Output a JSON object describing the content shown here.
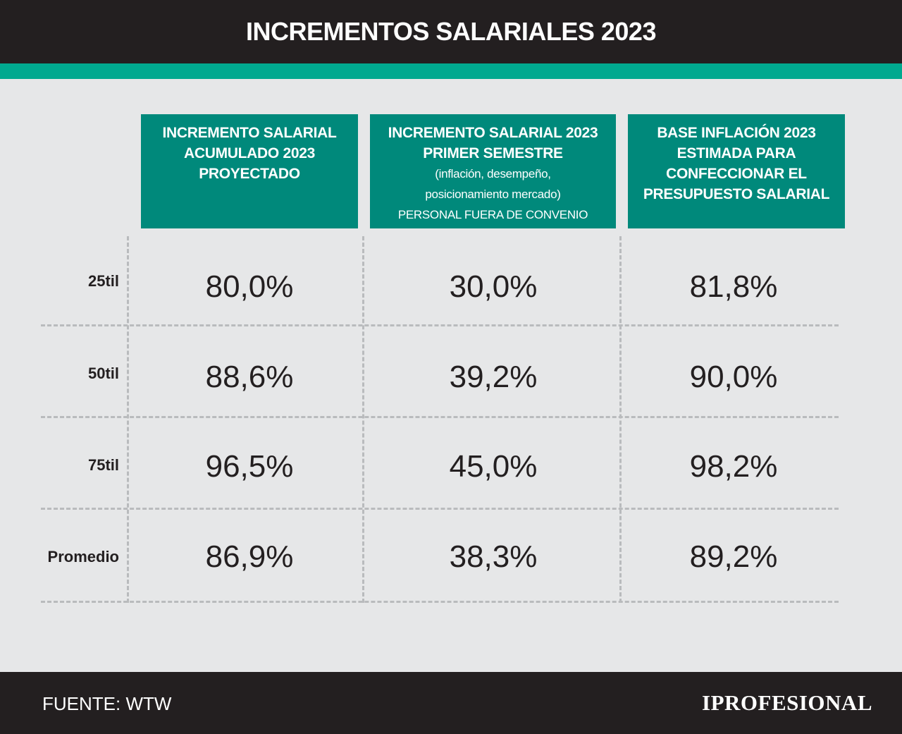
{
  "header": {
    "title": "INCREMENTOS SALARIALES 2023"
  },
  "colors": {
    "header_bg": "#231f20",
    "accent_stripe": "#00a98f",
    "column_header_bg": "#00897b",
    "background": "#e6e7e8"
  },
  "chart_data": {
    "type": "table",
    "title": "INCREMENTOS SALARIALES 2023",
    "columns": [
      {
        "lines": [
          "INCREMENTO SALARIAL",
          "ACUMULADO 2023",
          "PROYECTADO"
        ],
        "sub_lines": []
      },
      {
        "lines": [
          "INCREMENTO SALARIAL 2023",
          "PRIMER SEMESTRE"
        ],
        "sub_lines": [
          "(inflación, desempeño,",
          "posicionamiento mercado)",
          "PERSONAL FUERA DE CONVENIO"
        ]
      },
      {
        "lines": [
          "BASE INFLACIÓN 2023",
          "ESTIMADA PARA",
          "CONFECCIONAR EL",
          "PRESUPUESTO SALARIAL"
        ],
        "sub_lines": []
      }
    ],
    "rows": [
      {
        "label": "25til",
        "values": [
          "80,0%",
          "30,0%",
          "81,8%"
        ]
      },
      {
        "label": "50til",
        "values": [
          "88,6%",
          "39,2%",
          "90,0%"
        ]
      },
      {
        "label": "75til",
        "values": [
          "96,5%",
          "45,0%",
          "98,2%"
        ]
      },
      {
        "label": "Promedio",
        "values": [
          "86,9%",
          "38,3%",
          "89,2%"
        ]
      }
    ]
  },
  "footer": {
    "source": "FUENTE: WTW",
    "brand": "IPROFESIONAL"
  }
}
